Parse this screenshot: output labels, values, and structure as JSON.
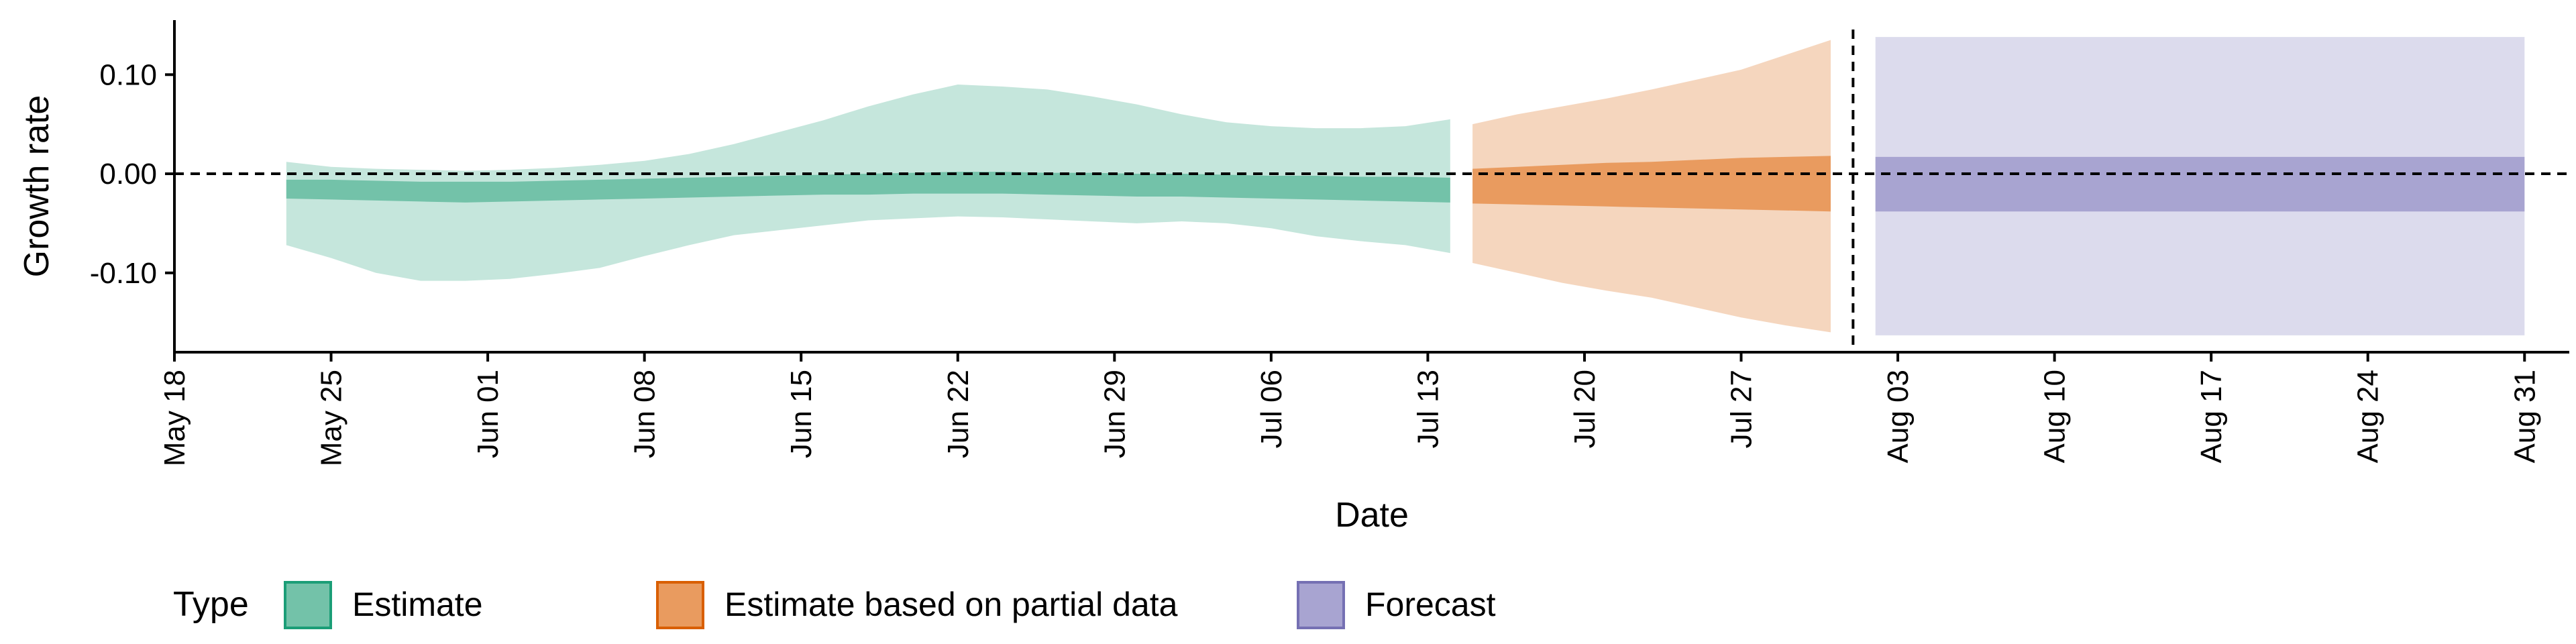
{
  "chart_data": {
    "type": "area",
    "xlabel": "Date",
    "ylabel": "Growth rate",
    "ylim": [
      -0.18,
      0.155
    ],
    "xlim": [
      "2020-05-18",
      "2020-09-02"
    ],
    "x_ticks": [
      {
        "date": "2020-05-18",
        "label": "May 18"
      },
      {
        "date": "2020-05-25",
        "label": "May 25"
      },
      {
        "date": "2020-06-01",
        "label": "Jun 01"
      },
      {
        "date": "2020-06-08",
        "label": "Jun 08"
      },
      {
        "date": "2020-06-15",
        "label": "Jun 15"
      },
      {
        "date": "2020-06-22",
        "label": "Jun 22"
      },
      {
        "date": "2020-06-29",
        "label": "Jun 29"
      },
      {
        "date": "2020-07-06",
        "label": "Jul 06"
      },
      {
        "date": "2020-07-13",
        "label": "Jul 13"
      },
      {
        "date": "2020-07-20",
        "label": "Jul 20"
      },
      {
        "date": "2020-07-27",
        "label": "Jul 27"
      },
      {
        "date": "2020-08-03",
        "label": "Aug 03"
      },
      {
        "date": "2020-08-10",
        "label": "Aug 10"
      },
      {
        "date": "2020-08-17",
        "label": "Aug 17"
      },
      {
        "date": "2020-08-24",
        "label": "Aug 24"
      },
      {
        "date": "2020-08-31",
        "label": "Aug 31"
      }
    ],
    "y_ticks": [
      {
        "value": 0.1,
        "label": "0.10"
      },
      {
        "value": 0.0,
        "label": "0.00"
      },
      {
        "value": -0.1,
        "label": "-0.10"
      }
    ],
    "reference_lines": {
      "horizontal_y": 0.0,
      "vertical_date": "2020-08-01"
    },
    "grid": false,
    "legend": {
      "title": "Type",
      "placement": "bottom-left",
      "items": [
        {
          "label": "Estimate",
          "fill": "#73c2a9",
          "border": "#1b9e77"
        },
        {
          "label": "Estimate based on partial data",
          "fill": "#e99b5f",
          "border": "#d95f02"
        },
        {
          "label": "Forecast",
          "fill": "#a8a4d1",
          "border": "#7570b3"
        }
      ]
    },
    "series": [
      {
        "name": "Estimate",
        "outer_color": "#c5e6dc",
        "inner_color": "#73c2a9",
        "x": [
          "2020-05-23",
          "2020-05-25",
          "2020-05-27",
          "2020-05-29",
          "2020-05-31",
          "2020-06-02",
          "2020-06-04",
          "2020-06-06",
          "2020-06-08",
          "2020-06-10",
          "2020-06-12",
          "2020-06-14",
          "2020-06-16",
          "2020-06-18",
          "2020-06-20",
          "2020-06-22",
          "2020-06-24",
          "2020-06-26",
          "2020-06-28",
          "2020-06-30",
          "2020-07-02",
          "2020-07-04",
          "2020-07-06",
          "2020-07-08",
          "2020-07-10",
          "2020-07-12",
          "2020-07-14"
        ],
        "lower_outer": [
          -0.072,
          -0.085,
          -0.1,
          -0.108,
          -0.108,
          -0.106,
          -0.101,
          -0.095,
          -0.083,
          -0.072,
          -0.062,
          -0.057,
          -0.052,
          -0.047,
          -0.045,
          -0.043,
          -0.044,
          -0.046,
          -0.048,
          -0.05,
          -0.048,
          -0.05,
          -0.055,
          -0.063,
          -0.068,
          -0.072,
          -0.08
        ],
        "upper_outer": [
          0.012,
          0.007,
          0.005,
          0.004,
          0.003,
          0.004,
          0.006,
          0.009,
          0.013,
          0.02,
          0.03,
          0.042,
          0.054,
          0.068,
          0.08,
          0.09,
          0.088,
          0.085,
          0.078,
          0.07,
          0.06,
          0.052,
          0.048,
          0.046,
          0.046,
          0.048,
          0.055
        ],
        "lower_inner": [
          -0.025,
          -0.026,
          -0.027,
          -0.028,
          -0.029,
          -0.028,
          -0.027,
          -0.026,
          -0.025,
          -0.024,
          -0.023,
          -0.022,
          -0.021,
          -0.021,
          -0.02,
          -0.02,
          -0.02,
          -0.021,
          -0.022,
          -0.023,
          -0.023,
          -0.024,
          -0.025,
          -0.026,
          -0.027,
          -0.028,
          -0.029
        ],
        "upper_inner": [
          -0.006,
          -0.006,
          -0.007,
          -0.008,
          -0.008,
          -0.008,
          -0.007,
          -0.006,
          -0.005,
          -0.004,
          -0.003,
          -0.002,
          -0.001,
          0.0,
          0.001,
          0.002,
          0.002,
          0.001,
          0.001,
          0.0,
          0.0,
          -0.001,
          -0.002,
          -0.002,
          -0.003,
          -0.003,
          -0.004
        ]
      },
      {
        "name": "Estimate based on partial data",
        "outer_color": "#f5d6be",
        "inner_color": "#e99b5f",
        "x": [
          "2020-07-15",
          "2020-07-17",
          "2020-07-19",
          "2020-07-21",
          "2020-07-23",
          "2020-07-25",
          "2020-07-27",
          "2020-07-29",
          "2020-07-31"
        ],
        "lower_outer": [
          -0.09,
          -0.1,
          -0.11,
          -0.118,
          -0.125,
          -0.135,
          -0.145,
          -0.153,
          -0.16
        ],
        "upper_outer": [
          0.05,
          0.06,
          0.068,
          0.076,
          0.085,
          0.095,
          0.105,
          0.12,
          0.135
        ],
        "lower_inner": [
          -0.03,
          -0.031,
          -0.032,
          -0.033,
          -0.034,
          -0.035,
          -0.036,
          -0.037,
          -0.038
        ],
        "upper_inner": [
          0.005,
          0.007,
          0.009,
          0.011,
          0.012,
          0.014,
          0.016,
          0.017,
          0.018
        ]
      },
      {
        "name": "Forecast",
        "outer_color": "#dcdbed",
        "inner_color": "#a8a4d1",
        "x": [
          "2020-08-02",
          "2020-08-31"
        ],
        "lower_outer": [
          -0.163,
          -0.163
        ],
        "upper_outer": [
          0.138,
          0.138
        ],
        "lower_inner": [
          -0.038,
          -0.038
        ],
        "upper_inner": [
          0.017,
          0.017
        ]
      }
    ]
  }
}
